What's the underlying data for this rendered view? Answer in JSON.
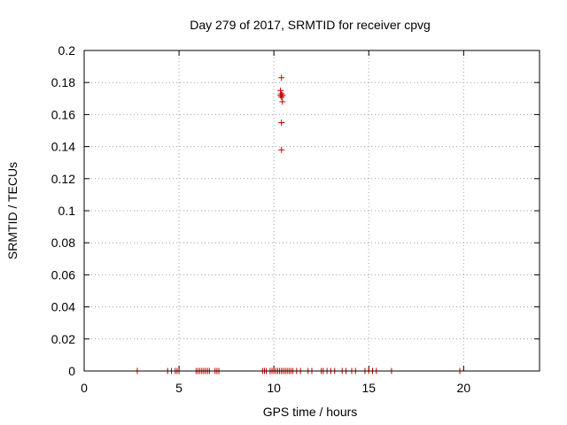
{
  "chart_data": {
    "type": "scatter",
    "title": "Day 279 of 2017, SRMTID for receiver cpvg",
    "xlabel": "GPS time / hours",
    "ylabel": "SRMTID / TECUs",
    "xlim": [
      0,
      24
    ],
    "ylim": [
      0,
      0.2
    ],
    "x_ticks": [
      0,
      5,
      10,
      15,
      20
    ],
    "x_tick_labels": [
      "0",
      "5",
      "10",
      "15",
      "20"
    ],
    "y_ticks": [
      0,
      0.02,
      0.04,
      0.06,
      0.08,
      0.1,
      0.12,
      0.14,
      0.16,
      0.18,
      0.2
    ],
    "y_tick_labels": [
      "0",
      "0.02",
      "0.04",
      "0.06",
      "0.08",
      "0.1",
      "0.12",
      "0.14",
      "0.16",
      "0.18",
      "0.2"
    ],
    "grid": true,
    "marker": "+",
    "marker_color": "#cc0000",
    "points": [
      {
        "x": 2.8,
        "y": 0
      },
      {
        "x": 4.4,
        "y": 0
      },
      {
        "x": 4.6,
        "y": 0
      },
      {
        "x": 4.8,
        "y": 0
      },
      {
        "x": 4.9,
        "y": 0
      },
      {
        "x": 5.0,
        "y": 0
      },
      {
        "x": 5.9,
        "y": 0
      },
      {
        "x": 6.0,
        "y": 0
      },
      {
        "x": 6.1,
        "y": 0
      },
      {
        "x": 6.2,
        "y": 0
      },
      {
        "x": 6.3,
        "y": 0
      },
      {
        "x": 6.4,
        "y": 0
      },
      {
        "x": 6.5,
        "y": 0
      },
      {
        "x": 6.6,
        "y": 0
      },
      {
        "x": 6.9,
        "y": 0
      },
      {
        "x": 7.0,
        "y": 0
      },
      {
        "x": 7.1,
        "y": 0
      },
      {
        "x": 9.4,
        "y": 0
      },
      {
        "x": 9.5,
        "y": 0
      },
      {
        "x": 9.6,
        "y": 0
      },
      {
        "x": 9.8,
        "y": 0
      },
      {
        "x": 9.9,
        "y": 0
      },
      {
        "x": 10.0,
        "y": 0
      },
      {
        "x": 10.1,
        "y": 0
      },
      {
        "x": 10.2,
        "y": 0
      },
      {
        "x": 10.3,
        "y": 0
      },
      {
        "x": 10.4,
        "y": 0
      },
      {
        "x": 10.5,
        "y": 0
      },
      {
        "x": 10.6,
        "y": 0
      },
      {
        "x": 10.7,
        "y": 0
      },
      {
        "x": 10.8,
        "y": 0
      },
      {
        "x": 10.9,
        "y": 0
      },
      {
        "x": 11.0,
        "y": 0
      },
      {
        "x": 11.2,
        "y": 0
      },
      {
        "x": 11.4,
        "y": 0
      },
      {
        "x": 11.8,
        "y": 0
      },
      {
        "x": 12.0,
        "y": 0
      },
      {
        "x": 12.5,
        "y": 0
      },
      {
        "x": 12.6,
        "y": 0
      },
      {
        "x": 12.8,
        "y": 0
      },
      {
        "x": 13.0,
        "y": 0
      },
      {
        "x": 13.2,
        "y": 0
      },
      {
        "x": 13.6,
        "y": 0
      },
      {
        "x": 13.8,
        "y": 0
      },
      {
        "x": 14.1,
        "y": 0
      },
      {
        "x": 14.3,
        "y": 0
      },
      {
        "x": 14.8,
        "y": 0
      },
      {
        "x": 15.0,
        "y": 0
      },
      {
        "x": 15.2,
        "y": 0
      },
      {
        "x": 15.4,
        "y": 0
      },
      {
        "x": 16.2,
        "y": 0
      },
      {
        "x": 19.8,
        "y": 0
      },
      {
        "x": 10.4,
        "y": 0.183
      },
      {
        "x": 10.35,
        "y": 0.175
      },
      {
        "x": 10.4,
        "y": 0.173
      },
      {
        "x": 10.45,
        "y": 0.172
      },
      {
        "x": 10.35,
        "y": 0.172
      },
      {
        "x": 10.4,
        "y": 0.171
      },
      {
        "x": 10.45,
        "y": 0.168
      },
      {
        "x": 10.4,
        "y": 0.155
      },
      {
        "x": 10.4,
        "y": 0.138
      }
    ]
  }
}
